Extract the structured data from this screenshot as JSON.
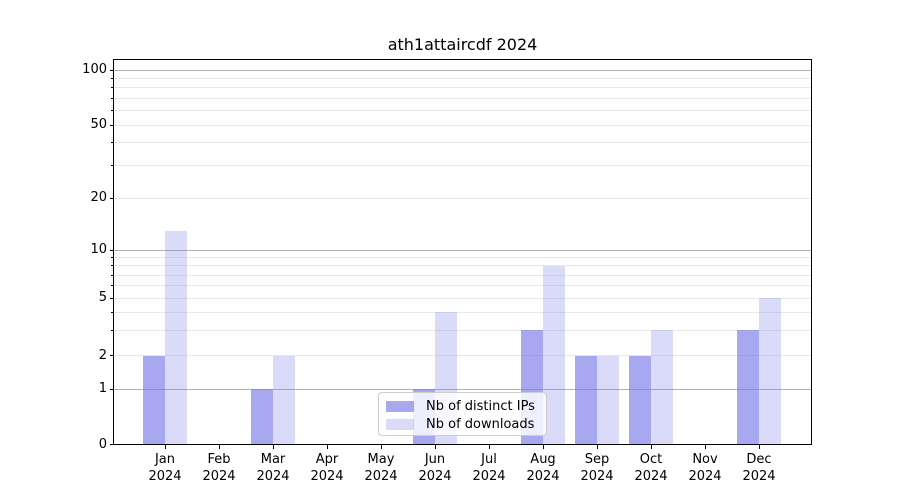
{
  "title": "ath1attaircdf 2024",
  "colors": {
    "bar_base_rgb": "121,121,232",
    "ips_alpha": 0.65,
    "downloads_alpha": 0.28,
    "grid_major": "#b1b1b1",
    "grid_minor": "#e8e8e8",
    "spine": "#000000",
    "text": "#000000",
    "legend_border": "#cccccc"
  },
  "legend": {
    "position": "lower center"
  },
  "chart_data": {
    "type": "bar",
    "title": "ath1attaircdf 2024",
    "categories": [
      "Jan 2024",
      "Feb 2024",
      "Mar 2024",
      "Apr 2024",
      "May 2024",
      "Jun 2024",
      "Jul 2024",
      "Aug 2024",
      "Sep 2024",
      "Oct 2024",
      "Nov 2024",
      "Dec 2024"
    ],
    "month_labels": [
      "Jan",
      "Feb",
      "Mar",
      "Apr",
      "May",
      "Jun",
      "Jul",
      "Aug",
      "Sep",
      "Oct",
      "Nov",
      "Dec"
    ],
    "year_label": "2024",
    "series": [
      {
        "name": "Nb of distinct IPs",
        "values": [
          2,
          0,
          1,
          0,
          0,
          1,
          0,
          3,
          2,
          2,
          0,
          3
        ]
      },
      {
        "name": "Nb of downloads",
        "values": [
          13,
          0,
          2,
          0,
          0,
          4,
          0,
          8,
          2,
          3,
          0,
          5
        ]
      }
    ],
    "xlabel": "",
    "ylabel": "",
    "yscale": "log-like (linear below 1)",
    "ytick_labels": [
      "0",
      "1",
      "2",
      "5",
      "10",
      "20",
      "50",
      "100"
    ],
    "yticks": [
      0,
      1,
      2,
      5,
      10,
      20,
      50,
      100
    ],
    "y_minor_gridlines": [
      2,
      3,
      4,
      5,
      6,
      7,
      8,
      9,
      20,
      30,
      40,
      50,
      60,
      70,
      80,
      90
    ],
    "y_major_gridlines": [
      1,
      10,
      100
    ],
    "ylim": [
      0,
      115
    ],
    "grid": true,
    "legend_position": "lower center"
  }
}
